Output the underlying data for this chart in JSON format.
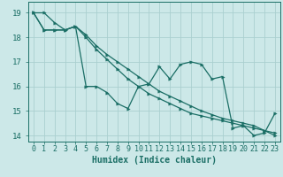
{
  "xlabel": "Humidex (Indice chaleur)",
  "bg_color": "#cce8e8",
  "grid_color": "#aacfcf",
  "line_color": "#1a6e65",
  "series_x": [
    0,
    1,
    2,
    3,
    4,
    5,
    6,
    7,
    8,
    9,
    10,
    11,
    12,
    13,
    14,
    15,
    16,
    17,
    18,
    19,
    20,
    21,
    22,
    23
  ],
  "series": [
    [
      19.0,
      19.0,
      18.6,
      18.3,
      18.45,
      16.0,
      16.0,
      15.75,
      15.3,
      15.1,
      16.0,
      16.1,
      16.8,
      16.3,
      16.9,
      17.0,
      16.9,
      16.3,
      16.4,
      14.3,
      14.4,
      14.0,
      14.1,
      14.9
    ],
    [
      19.0,
      18.3,
      18.3,
      18.3,
      18.45,
      18.1,
      17.65,
      17.3,
      17.0,
      16.7,
      16.4,
      16.1,
      15.8,
      15.6,
      15.4,
      15.2,
      15.0,
      14.85,
      14.7,
      14.6,
      14.5,
      14.4,
      14.2,
      14.0
    ],
    [
      19.0,
      18.3,
      18.3,
      18.3,
      18.45,
      18.0,
      17.5,
      17.1,
      16.7,
      16.3,
      16.0,
      15.7,
      15.5,
      15.3,
      15.1,
      14.9,
      14.8,
      14.7,
      14.6,
      14.5,
      14.4,
      14.3,
      14.2,
      14.1
    ]
  ],
  "xlim": [
    -0.5,
    23.5
  ],
  "ylim": [
    13.75,
    19.45
  ],
  "yticks": [
    14,
    15,
    16,
    17,
    18,
    19
  ],
  "xticks": [
    0,
    1,
    2,
    3,
    4,
    5,
    6,
    7,
    8,
    9,
    10,
    11,
    12,
    13,
    14,
    15,
    16,
    17,
    18,
    19,
    20,
    21,
    22,
    23
  ],
  "xtick_labels": [
    "0",
    "1",
    "2",
    "3",
    "4",
    "5",
    "6",
    "7",
    "8",
    "9",
    "10",
    "11",
    "12",
    "13",
    "14",
    "15",
    "16",
    "17",
    "18",
    "19",
    "20",
    "21",
    "22",
    "23"
  ],
  "markersize": 2.5,
  "linewidth": 0.9,
  "xlabel_fontsize": 7,
  "tick_fontsize": 6
}
